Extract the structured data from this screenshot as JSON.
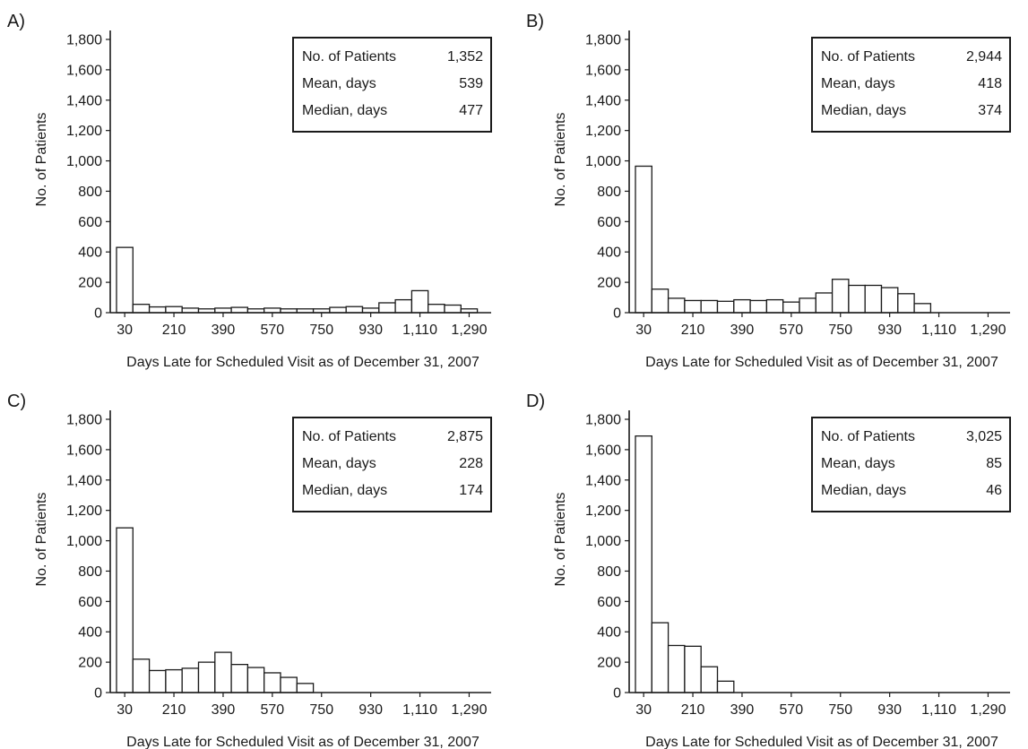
{
  "figure": {
    "xlabel": "Days Late for Scheduled Visit as of December 31, 2007",
    "ylabel": "No. of Patients"
  },
  "chart_data": [
    {
      "type": "bar",
      "panel_label": "A)",
      "xlabel": "Days Late for Scheduled Visit as of December 31, 2007",
      "ylabel": "No. of Patients",
      "ylim": [
        0,
        1800
      ],
      "yticks": [
        "0",
        "200",
        "400",
        "600",
        "800",
        "1,000",
        "1,200",
        "1,400",
        "1,600",
        "1,800"
      ],
      "xticks": [
        "30",
        "210",
        "390",
        "570",
        "750",
        "930",
        "1,110",
        "1,290"
      ],
      "bin_start": 30,
      "bin_width": 60,
      "values": [
        430,
        55,
        38,
        40,
        30,
        25,
        30,
        35,
        25,
        30,
        25,
        25,
        25,
        35,
        40,
        30,
        65,
        85,
        145,
        55,
        50,
        25
      ],
      "stats": [
        {
          "label": "No. of Patients",
          "value": "1,352"
        },
        {
          "label": "Mean, days",
          "value": "539"
        },
        {
          "label": "Median, days",
          "value": "477"
        }
      ],
      "legend_position": "top-right"
    },
    {
      "type": "bar",
      "panel_label": "B)",
      "xlabel": "Days Late for Scheduled Visit as of December 31, 2007",
      "ylabel": "No. of Patients",
      "ylim": [
        0,
        1800
      ],
      "yticks": [
        "0",
        "200",
        "400",
        "600",
        "800",
        "1,000",
        "1,200",
        "1,400",
        "1,600",
        "1,800"
      ],
      "xticks": [
        "30",
        "210",
        "390",
        "570",
        "750",
        "930",
        "1,110",
        "1,290"
      ],
      "bin_start": 30,
      "bin_width": 60,
      "values": [
        965,
        155,
        95,
        80,
        80,
        75,
        85,
        80,
        85,
        70,
        95,
        130,
        220,
        180,
        180,
        165,
        125,
        60
      ],
      "stats": [
        {
          "label": "No. of Patients",
          "value": "2,944"
        },
        {
          "label": "Mean, days",
          "value": "418"
        },
        {
          "label": "Median, days",
          "value": "374"
        }
      ],
      "legend_position": "top-right"
    },
    {
      "type": "bar",
      "panel_label": "C)",
      "xlabel": "Days Late for Scheduled Visit as of December 31, 2007",
      "ylabel": "No. of Patients",
      "ylim": [
        0,
        1800
      ],
      "yticks": [
        "0",
        "200",
        "400",
        "600",
        "800",
        "1,000",
        "1,200",
        "1,400",
        "1,600",
        "1,800"
      ],
      "xticks": [
        "30",
        "210",
        "390",
        "570",
        "750",
        "930",
        "1,110",
        "1,290"
      ],
      "bin_start": 30,
      "bin_width": 60,
      "values": [
        1085,
        220,
        145,
        150,
        160,
        200,
        265,
        185,
        165,
        130,
        100,
        60
      ],
      "stats": [
        {
          "label": "No. of Patients",
          "value": "2,875"
        },
        {
          "label": "Mean, days",
          "value": "228"
        },
        {
          "label": "Median, days",
          "value": "174"
        }
      ],
      "legend_position": "top-right"
    },
    {
      "type": "bar",
      "panel_label": "D)",
      "xlabel": "Days Late for Scheduled Visit as of December 31, 2007",
      "ylabel": "No. of Patients",
      "ylim": [
        0,
        1800
      ],
      "yticks": [
        "0",
        "200",
        "400",
        "600",
        "800",
        "1,000",
        "1,200",
        "1,400",
        "1,600",
        "1,800"
      ],
      "xticks": [
        "30",
        "210",
        "390",
        "570",
        "750",
        "930",
        "1,110",
        "1,290"
      ],
      "bin_start": 30,
      "bin_width": 60,
      "values": [
        1690,
        460,
        310,
        305,
        170,
        75
      ],
      "stats": [
        {
          "label": "No. of Patients",
          "value": "3,025"
        },
        {
          "label": "Mean, days",
          "value": "85"
        },
        {
          "label": "Median, days",
          "value": "46"
        }
      ],
      "legend_position": "top-right"
    }
  ]
}
